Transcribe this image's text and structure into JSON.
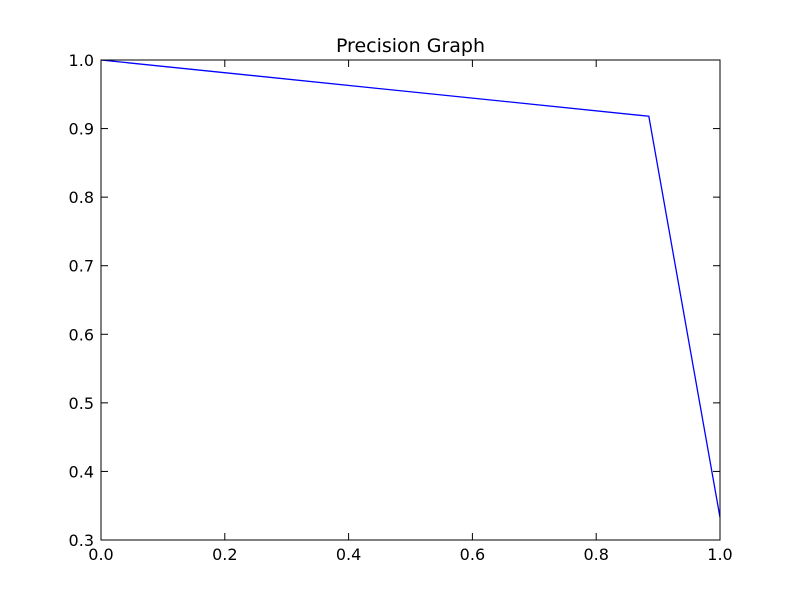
{
  "chart_data": {
    "type": "line",
    "title": "Precision Graph",
    "xlabel": "",
    "ylabel": "",
    "xlim": [
      0.0,
      1.0
    ],
    "ylim": [
      0.3,
      1.0
    ],
    "x_ticks": [
      "0.0",
      "0.2",
      "0.4",
      "0.6",
      "0.8",
      "1.0"
    ],
    "y_ticks": [
      "0.3",
      "0.4",
      "0.5",
      "0.6",
      "0.7",
      "0.8",
      "0.9",
      "1.0"
    ],
    "grid": false,
    "series": [
      {
        "x": [
          0.0,
          0.885,
          1.0
        ],
        "y": [
          1.0,
          0.918,
          0.333
        ],
        "color": "#0000ff"
      }
    ]
  }
}
